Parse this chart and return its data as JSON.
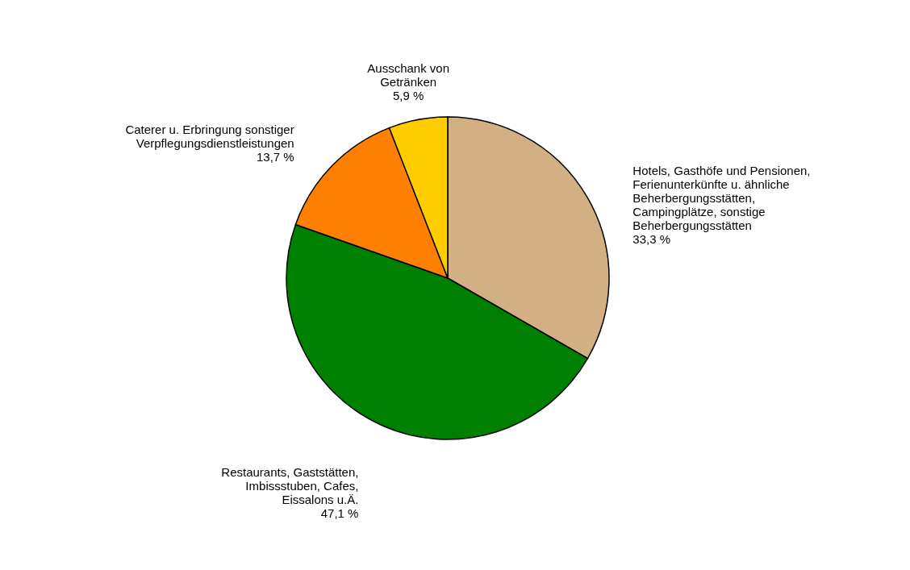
{
  "chart_data": {
    "type": "pie",
    "categories": [
      "Hotels, Gasthöfe und Pensionen,\nFerienunterkünfte u. ähnliche\nBeherbergungsstätten,\nCampingplätze, sonstige\nBeherbergungsstätten",
      "Restaurants, Gaststätten,\nImbissstuben, Cafes,\nEissalons u.Ä.",
      "Caterer u. Erbringung sonstiger\nVerpflegungsdienstleistungen",
      "Ausschank von\nGetränken"
    ],
    "values": [
      33.3,
      47.1,
      13.7,
      5.9
    ],
    "colors": [
      "#d2b084",
      "#008000",
      "#ff7f00",
      "#ffcc00"
    ],
    "value_labels": [
      "33,3 %",
      "47,1 %",
      "13,7 %",
      "5,9 %"
    ],
    "legend": false
  }
}
